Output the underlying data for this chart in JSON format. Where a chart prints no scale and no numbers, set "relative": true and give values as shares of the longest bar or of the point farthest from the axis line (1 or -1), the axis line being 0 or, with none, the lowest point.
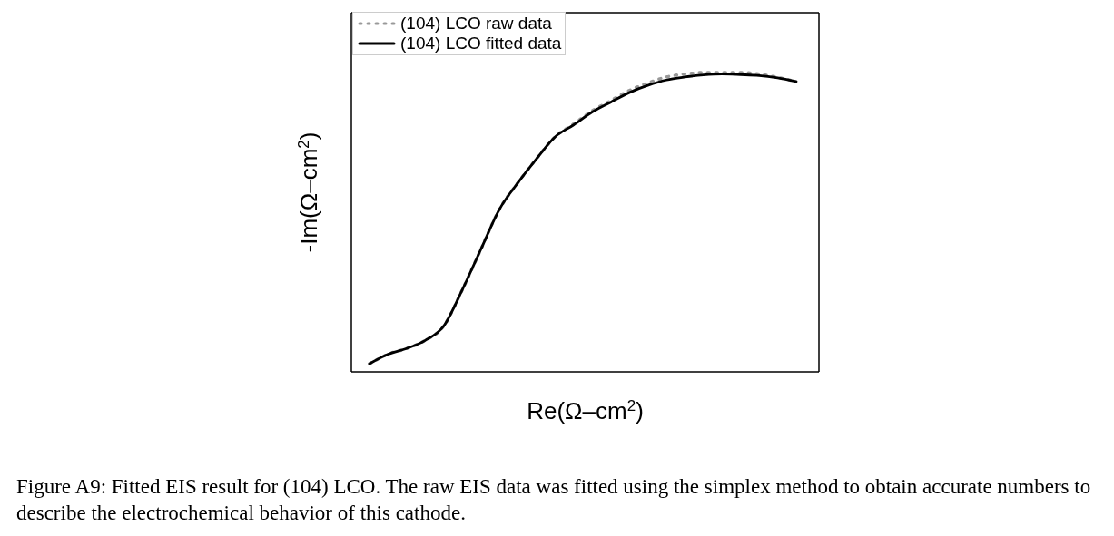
{
  "chart_data": {
    "type": "line",
    "relative": true,
    "xlabel": "Re(Ω–cm$^{2}$)",
    "ylabel": "-Im(Ω–cm$^{2}$)",
    "legend": "top left",
    "categories": [
      null,
      null,
      null,
      null,
      null,
      null,
      null,
      null,
      null,
      null,
      null,
      null,
      null,
      null,
      null,
      null,
      null,
      null,
      null,
      null,
      null,
      null,
      null,
      null
    ],
    "series": [
      {
        "name": "(104) LCO raw data",
        "color": "#999999",
        "line_style": "dotted",
        "values": [
          0.027,
          0.059,
          0.078,
          0.105,
          0.153,
          0.274,
          0.409,
          0.543,
          0.632,
          0.712,
          0.785,
          0.828,
          0.872,
          0.906,
          0.94,
          0.965,
          0.985,
          0.995,
          1.0,
          1.0,
          1.0,
          0.995,
          0.984,
          0.97
        ]
      },
      {
        "name": "(104) LCO fitted data",
        "color": "#000000",
        "line_style": "solid",
        "values": [
          0.027,
          0.059,
          0.078,
          0.105,
          0.153,
          0.274,
          0.409,
          0.543,
          0.632,
          0.712,
          0.785,
          0.825,
          0.868,
          0.901,
          0.933,
          0.957,
          0.975,
          0.985,
          0.992,
          0.995,
          0.993,
          0.99,
          0.982,
          0.97
        ]
      }
    ],
    "annotations": [
      "Figure A9: Fitted EIS result for (104) LCO. The raw EIS data was fitted using the simplex method to obtain accurate numbers to describe the electrochemical behavior of this cathode."
    ]
  }
}
